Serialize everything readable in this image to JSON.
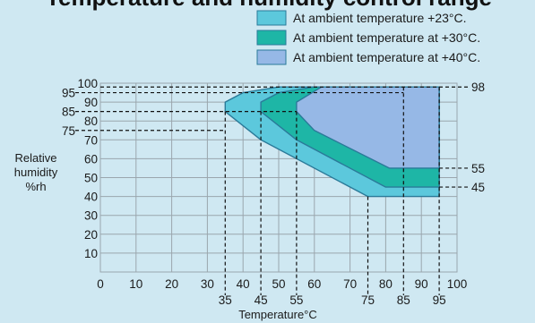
{
  "chart_data": {
    "type": "area",
    "title": "Temperature and humidity control range",
    "xlabel": "Temperature°C",
    "ylabel_lines": [
      "Relative",
      "humidity",
      "%rh"
    ],
    "xlim": [
      0,
      100
    ],
    "ylim": [
      0,
      100
    ],
    "x_ticks": [
      0,
      10,
      20,
      30,
      40,
      50,
      60,
      70,
      80,
      90,
      100
    ],
    "y_ticks": [
      10,
      20,
      30,
      40,
      50,
      60,
      70,
      80,
      90,
      100
    ],
    "x_ref_ticks": [
      35,
      45,
      55,
      75,
      85,
      95
    ],
    "y_ref_left": [
      95,
      85,
      75
    ],
    "y_ref_right": [
      98,
      55,
      45
    ],
    "grid": true,
    "legend_position": "top-right",
    "series": [
      {
        "name": "At ambient temperature +23°C.",
        "color": "#5cc8dc",
        "points": [
          [
            35,
            85
          ],
          [
            35,
            90
          ],
          [
            40,
            95
          ],
          [
            50,
            98
          ],
          [
            95,
            98
          ],
          [
            95,
            40
          ],
          [
            75,
            40
          ],
          [
            45,
            70
          ],
          [
            35,
            85
          ]
        ]
      },
      {
        "name": "At ambient temperature at +30°C.",
        "color": "#1eb6a6",
        "points": [
          [
            45,
            85
          ],
          [
            45,
            90
          ],
          [
            50,
            95
          ],
          [
            60,
            98
          ],
          [
            95,
            98
          ],
          [
            95,
            45
          ],
          [
            80,
            45
          ],
          [
            55,
            70
          ],
          [
            45,
            85
          ]
        ]
      },
      {
        "name": "At ambient temperature at +40°C.",
        "color": "#96b8e6",
        "points": [
          [
            55,
            85
          ],
          [
            55,
            90
          ],
          [
            62,
            98
          ],
          [
            95,
            98
          ],
          [
            95,
            55
          ],
          [
            81,
            55
          ],
          [
            60,
            75
          ],
          [
            55,
            85
          ]
        ]
      }
    ],
    "ref_lines": [
      {
        "axis": "y",
        "value": 98,
        "side": "right",
        "x_from": 0
      },
      {
        "axis": "y",
        "value": 95,
        "side": "left",
        "x_to": 85
      },
      {
        "axis": "y",
        "value": 85,
        "side": "left",
        "x_to": 55
      },
      {
        "axis": "y",
        "value": 75,
        "side": "left",
        "x_to": 35
      },
      {
        "axis": "y",
        "value": 55,
        "side": "right",
        "x_from": 95
      },
      {
        "axis": "y",
        "value": 45,
        "side": "right",
        "x_from": 95
      },
      {
        "axis": "x",
        "value": 35,
        "y_to": 85
      },
      {
        "axis": "x",
        "value": 45,
        "y_to": 85
      },
      {
        "axis": "x",
        "value": 55,
        "y_to": 85
      },
      {
        "axis": "x",
        "value": 75,
        "y_to": 40
      },
      {
        "axis": "x",
        "value": 85,
        "y_to": 98
      },
      {
        "axis": "x",
        "value": 95,
        "y_to": 98
      }
    ]
  }
}
